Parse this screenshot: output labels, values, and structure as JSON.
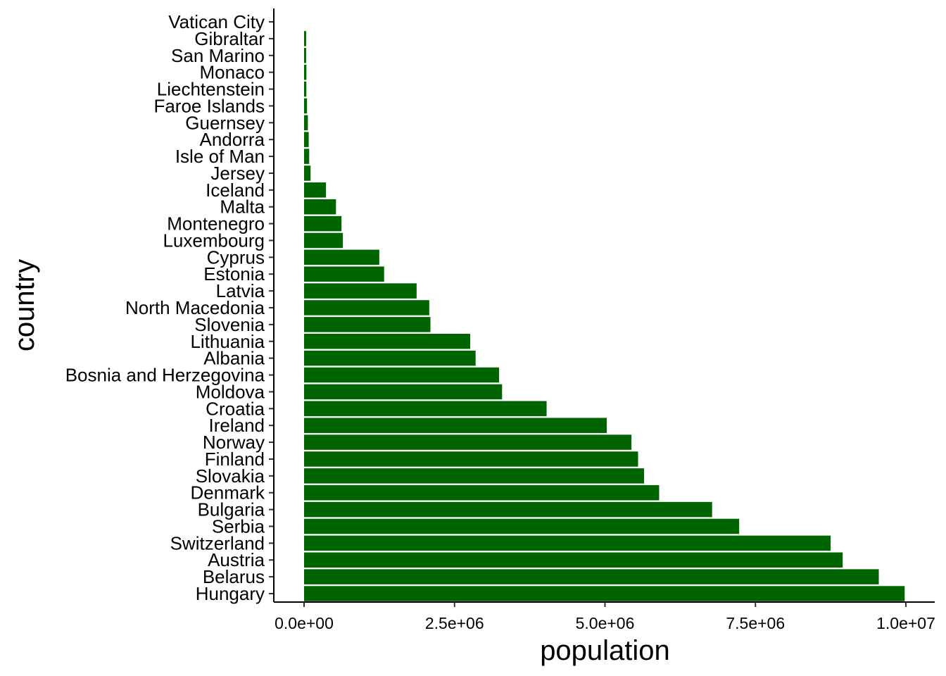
{
  "chart_data": {
    "type": "bar",
    "orientation": "horizontal",
    "xlabel": "population",
    "ylabel": "country",
    "xlim": [
      0,
      10000000
    ],
    "x_ticks": [
      0,
      2500000,
      5000000,
      7500000,
      10000000
    ],
    "x_tick_labels": [
      "0.0e+00",
      "2.5e+06",
      "5.0e+06",
      "7.5e+06",
      "1.0e+07"
    ],
    "grid": false,
    "legend": "none",
    "bar_color": "#006400",
    "categories": [
      "Vatican City",
      "Gibraltar",
      "San Marino",
      "Monaco",
      "Liechtenstein",
      "Faroe Islands",
      "Guernsey",
      "Andorra",
      "Isle of Man",
      "Jersey",
      "Iceland",
      "Malta",
      "Montenegro",
      "Luxembourg",
      "Cyprus",
      "Estonia",
      "Latvia",
      "North Macedonia",
      "Slovenia",
      "Lithuania",
      "Albania",
      "Bosnia and Herzegovina",
      "Moldova",
      "Croatia",
      "Ireland",
      "Norway",
      "Finland",
      "Slovakia",
      "Denmark",
      "Bulgaria",
      "Serbia",
      "Switzerland",
      "Austria",
      "Belarus",
      "Hungary"
    ],
    "values": [
      800,
      34000,
      34000,
      39000,
      38000,
      49000,
      63000,
      77000,
      85000,
      108000,
      364000,
      530000,
      622000,
      645000,
      1250000,
      1330000,
      1870000,
      2080000,
      2100000,
      2760000,
      2850000,
      3240000,
      3290000,
      4030000,
      5030000,
      5440000,
      5550000,
      5650000,
      5900000,
      6780000,
      7230000,
      8750000,
      8950000,
      9550000,
      9980000
    ]
  }
}
